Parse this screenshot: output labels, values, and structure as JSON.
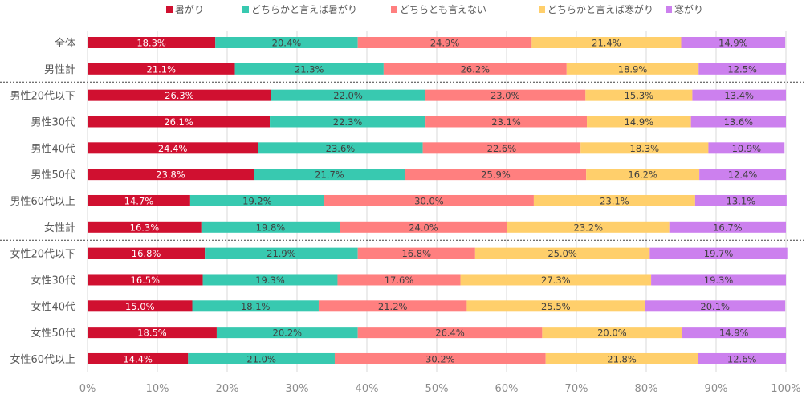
{
  "chart_data": {
    "type": "bar",
    "orientation": "horizontal",
    "stacked": "percent",
    "title": "",
    "xlabel": "",
    "ylabel": "",
    "xlim": [
      0,
      100
    ],
    "x_ticks": [
      "0%",
      "10%",
      "20%",
      "30%",
      "40%",
      "50%",
      "60%",
      "70%",
      "80%",
      "90%",
      "100%"
    ],
    "grid": "vertical",
    "legend_position": "top",
    "categories": [
      "全体",
      "男性計",
      "男性20代以下",
      "男性30代",
      "男性40代",
      "男性50代",
      "男性60代以上",
      "女性計",
      "女性20代以下",
      "女性30代",
      "女性40代",
      "女性50代",
      "女性60代以上"
    ],
    "separators_after": [
      "男性計",
      "女性計"
    ],
    "series": [
      {
        "name": "暑がり",
        "color": "#D01030",
        "label_color": "#ffffff",
        "values": [
          18.3,
          21.1,
          26.3,
          26.1,
          24.4,
          23.8,
          14.7,
          16.3,
          16.8,
          16.5,
          15.0,
          18.5,
          14.4
        ]
      },
      {
        "name": "どちらかと言えば暑がり",
        "color": "#38C9B0",
        "label_color": "#404040",
        "values": [
          20.4,
          21.3,
          22.0,
          22.3,
          23.6,
          21.7,
          19.2,
          19.8,
          21.9,
          19.3,
          18.1,
          20.2,
          21.0
        ]
      },
      {
        "name": "どちらとも言えない",
        "color": "#FF7F7F",
        "label_color": "#404040",
        "values": [
          24.9,
          26.2,
          23.0,
          23.1,
          22.6,
          25.9,
          30.0,
          24.0,
          16.8,
          17.6,
          21.2,
          26.4,
          30.2
        ]
      },
      {
        "name": "どちらかと言えば寒がり",
        "color": "#FFCF6B",
        "label_color": "#404040",
        "values": [
          21.4,
          18.9,
          15.3,
          14.9,
          18.3,
          16.2,
          23.1,
          23.2,
          25.0,
          27.3,
          25.5,
          20.0,
          21.8
        ]
      },
      {
        "name": "寒がり",
        "color": "#CC80EE",
        "label_color": "#404040",
        "values": [
          14.9,
          12.5,
          13.4,
          13.6,
          10.9,
          12.4,
          13.1,
          16.7,
          19.7,
          19.3,
          20.1,
          14.9,
          12.6
        ]
      }
    ]
  }
}
